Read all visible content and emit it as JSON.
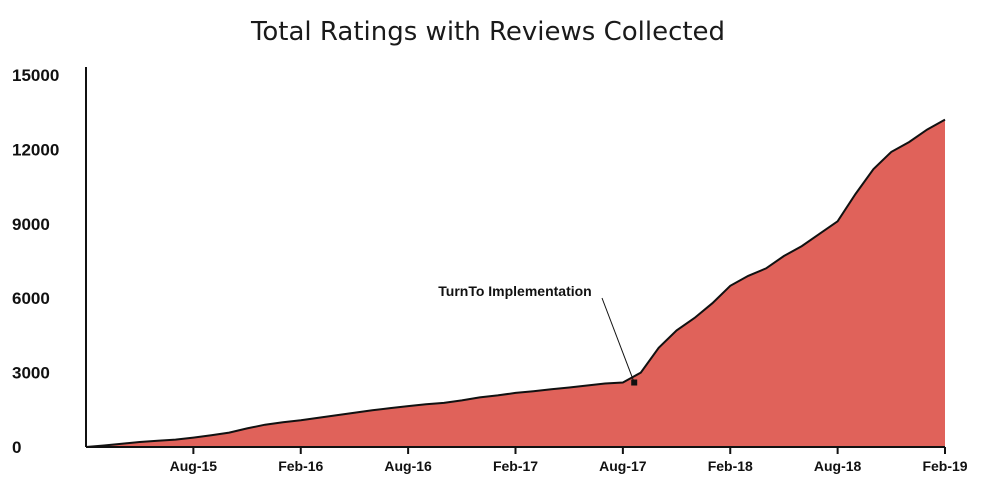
{
  "chart_data": {
    "type": "area",
    "title": "Total Ratings with Reviews Collected",
    "xlabel": "",
    "ylabel": "",
    "ylim": [
      0,
      15000
    ],
    "yticks": [
      0,
      3000,
      6000,
      9000,
      12000,
      15000
    ],
    "xticks": [
      "Aug-15",
      "Feb-16",
      "Aug-16",
      "Feb-17",
      "Aug-17",
      "Feb-18",
      "Aug-18",
      "Feb-19"
    ],
    "grid": false,
    "legend": "none",
    "fill_color": "#e0625a",
    "line_color": "#111111",
    "x_start": "Feb-15",
    "x_end": "Feb-19",
    "series": [
      {
        "x": [
          "2015-02-01",
          "2015-03-01",
          "2015-04-01",
          "2015-05-01",
          "2015-06-01",
          "2015-07-01",
          "2015-08-01",
          "2015-09-01",
          "2015-10-01",
          "2015-11-01",
          "2015-12-01",
          "2016-01-01",
          "2016-02-01",
          "2016-03-01",
          "2016-04-01",
          "2016-05-01",
          "2016-06-01",
          "2016-07-01",
          "2016-08-01",
          "2016-09-01",
          "2016-10-01",
          "2016-11-01",
          "2016-12-01",
          "2017-01-01",
          "2017-02-01",
          "2017-03-01",
          "2017-04-01",
          "2017-05-01",
          "2017-06-01",
          "2017-07-01",
          "2017-08-01",
          "2017-09-01",
          "2017-10-01",
          "2017-11-01",
          "2017-12-01",
          "2018-01-01",
          "2018-02-01",
          "2018-03-01",
          "2018-04-01",
          "2018-05-01",
          "2018-06-01",
          "2018-07-01",
          "2018-08-01",
          "2018-09-01",
          "2018-10-01",
          "2018-11-01",
          "2018-12-01",
          "2019-01-01",
          "2019-02-01"
        ],
        "values": [
          0,
          60,
          130,
          200,
          250,
          300,
          380,
          470,
          580,
          750,
          900,
          1000,
          1080,
          1180,
          1280,
          1380,
          1480,
          1570,
          1650,
          1720,
          1780,
          1880,
          2000,
          2080,
          2180,
          2250,
          2330,
          2400,
          2480,
          2560,
          2600,
          3000,
          4000,
          4700,
          5200,
          5800,
          6500,
          6900,
          7200,
          7700,
          8100,
          8600,
          9100,
          10200,
          11200,
          11900,
          12300,
          12800,
          13200
        ]
      }
    ],
    "annotation": {
      "text": "TurnTo Implementation",
      "x": "2017-08-20",
      "y": 2600
    }
  }
}
